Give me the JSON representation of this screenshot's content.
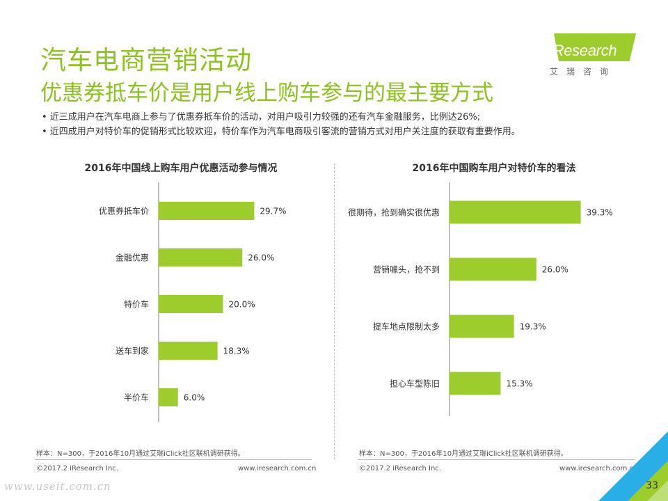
{
  "header": {
    "title": "汽车电商营销活动",
    "subtitle": "优惠券抵车价是用户线上购车参与的最主要方式"
  },
  "logo": {
    "brand": "iResearch",
    "cn": "艾瑞咨询"
  },
  "bullets": [
    "•  近三成用户在汽车电商上参与了优惠券抵车价的活动，对用户吸引力较强的还有汽车金融服务，比例达26%;",
    "•  近四成用户对特价车的促销形式比较欢迎，特价车作为汽车电商吸引客流的营销方式对用户关注度的获取有重要作用。"
  ],
  "colors": {
    "accent": "#8dc21f",
    "bar": "#9ccd2d",
    "corner_blue": "#29aee8",
    "corner_green": "#9ccd2d"
  },
  "chart_data": [
    {
      "type": "bar",
      "orientation": "horizontal",
      "title": "2016年中国线上购车用户优惠活动参与情况",
      "categories": [
        "优惠券抵车价",
        "金融优惠",
        "特价车",
        "送车到家",
        "半价车"
      ],
      "values": [
        29.7,
        26.0,
        20.0,
        18.3,
        6.0
      ],
      "value_labels": [
        "29.7%",
        "26.0%",
        "20.0%",
        "18.3%",
        "6.0%"
      ],
      "unit": "%",
      "xlim": [
        0,
        40
      ]
    },
    {
      "type": "bar",
      "orientation": "horizontal",
      "title": "2016年中国购车用户对特价车的看法",
      "categories": [
        "很期待，抢到确实很优惠",
        "营销噱头，抢不到",
        "提车地点限制太多",
        "担心车型陈旧"
      ],
      "values": [
        39.3,
        26.0,
        19.3,
        15.3
      ],
      "value_labels": [
        "39.3%",
        "26.0%",
        "19.3%",
        "15.3%"
      ],
      "unit": "%",
      "xlim": [
        0,
        40
      ]
    }
  ],
  "notes": {
    "left": "样本：N=300，于2016年10月通过艾瑞iClick社区联机调研获得。",
    "right": "样本：N=300，于2016年10月通过艾瑞iClick社区联机调研获得。"
  },
  "footer": {
    "copyright_left": "©2017.2 iResearch Inc.",
    "url_left": "www.iresearch.com.cn",
    "copyright_right": "©2017.2 iResearch Inc.",
    "url_right": "www.iresearch.com.cn"
  },
  "watermark": "www.useit.com.cn",
  "page_number": "33"
}
